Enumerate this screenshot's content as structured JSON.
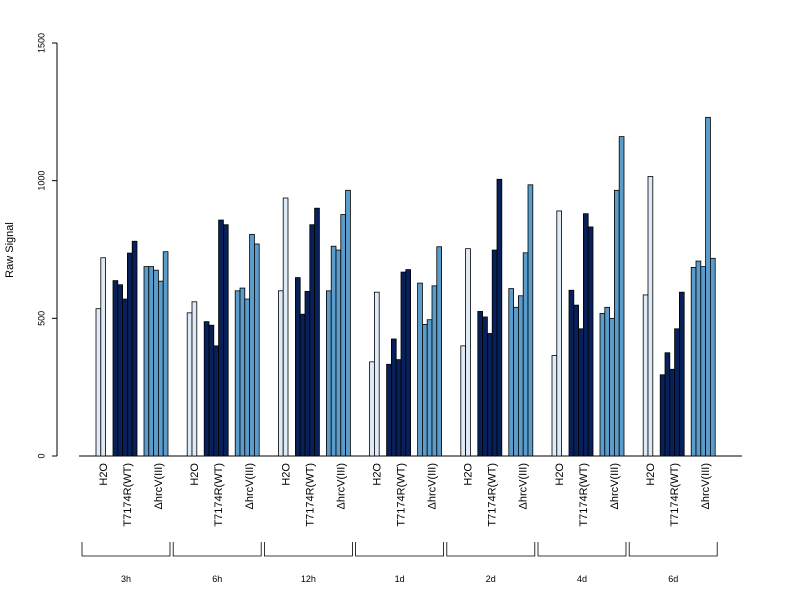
{
  "chart_data": {
    "type": "bar",
    "ylabel": "Raw Signal",
    "ylim": [
      0,
      1500
    ],
    "yticks": [
      0,
      500,
      1000,
      1500
    ],
    "grid": false,
    "legend": "none",
    "colors": {
      "H2O": "#deebf7",
      "T7174R(WT)": "#08205a",
      "ΔhrcV(III)": "#5b9ccb"
    },
    "groups": [
      {
        "label": "3h",
        "categories": [
          {
            "label": "H2O",
            "values": [
              535,
              720
            ]
          },
          {
            "label": "T7174R(WT)",
            "values": [
              637,
              622,
              570,
              737,
              780
            ]
          },
          {
            "label": "ΔhrcV(III)",
            "values": [
              688,
              688,
              675,
              635,
              742
            ]
          }
        ]
      },
      {
        "label": "6h",
        "categories": [
          {
            "label": "H2O",
            "values": [
              520,
              560
            ]
          },
          {
            "label": "T7174R(WT)",
            "values": [
              488,
              475,
              400,
              857,
              840
            ]
          },
          {
            "label": "ΔhrcV(III)",
            "values": [
              600,
              610,
              570,
              805,
              770
            ]
          }
        ]
      },
      {
        "label": "12h",
        "categories": [
          {
            "label": "H2O",
            "values": [
              600,
              937
            ]
          },
          {
            "label": "T7174R(WT)",
            "values": [
              648,
              515,
              598,
              840,
              900
            ]
          },
          {
            "label": "ΔhrcV(III)",
            "values": [
              600,
              762,
              748,
              877,
              965
            ]
          }
        ]
      },
      {
        "label": "1d",
        "categories": [
          {
            "label": "H2O",
            "values": [
              342,
              595
            ]
          },
          {
            "label": "T7174R(WT)",
            "values": [
              333,
              425,
              350,
              668,
              677
            ]
          },
          {
            "label": "ΔhrcV(III)",
            "values": [
              628,
              478,
              495,
              618,
              760
            ]
          }
        ]
      },
      {
        "label": "2d",
        "categories": [
          {
            "label": "H2O",
            "values": [
              400,
              753
            ]
          },
          {
            "label": "T7174R(WT)",
            "values": [
              525,
              505,
              445,
              748,
              1005
            ]
          },
          {
            "label": "ΔhrcV(III)",
            "values": [
              608,
              540,
              582,
              738,
              985
            ]
          }
        ]
      },
      {
        "label": "4d",
        "categories": [
          {
            "label": "H2O",
            "values": [
              365,
              890
            ]
          },
          {
            "label": "T7174R(WT)",
            "values": [
              602,
              548,
              462,
              880,
              832
            ]
          },
          {
            "label": "ΔhrcV(III)",
            "values": [
              518,
              540,
              500,
              965,
              1160
            ]
          }
        ]
      },
      {
        "label": "6d",
        "categories": [
          {
            "label": "H2O",
            "values": [
              585,
              1015
            ]
          },
          {
            "label": "T7174R(WT)",
            "values": [
              295,
              375,
              315,
              462,
              595
            ]
          },
          {
            "label": "ΔhrcV(III)",
            "values": [
              685,
              708,
              688,
              1230,
              718
            ]
          }
        ]
      }
    ]
  }
}
